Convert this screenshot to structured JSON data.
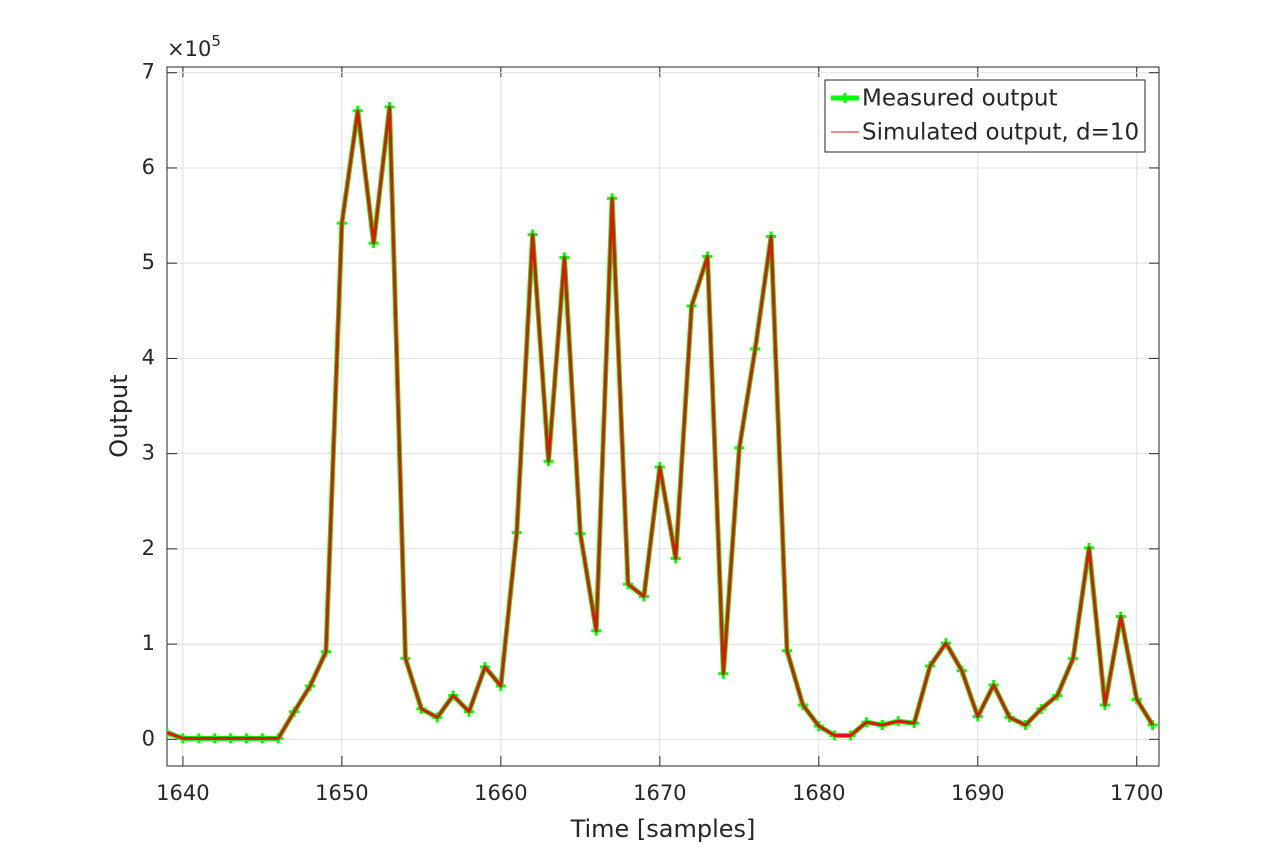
{
  "chart_data": {
    "type": "line",
    "xlabel": "Time [samples]",
    "ylabel": "Output",
    "y_exponent": {
      "base": "×10",
      "power": "5"
    },
    "x": [
      1639,
      1640,
      1641,
      1642,
      1643,
      1644,
      1645,
      1646,
      1647,
      1648,
      1649,
      1650,
      1651,
      1652,
      1653,
      1654,
      1655,
      1656,
      1657,
      1658,
      1659,
      1660,
      1661,
      1662,
      1663,
      1664,
      1665,
      1666,
      1667,
      1668,
      1669,
      1670,
      1671,
      1672,
      1673,
      1674,
      1675,
      1676,
      1677,
      1678,
      1679,
      1680,
      1681,
      1682,
      1683,
      1684,
      1685,
      1686,
      1687,
      1688,
      1689,
      1690,
      1691,
      1692,
      1693,
      1694,
      1695,
      1696,
      1697,
      1698,
      1699,
      1700,
      1701
    ],
    "series": [
      {
        "name": "Measured output",
        "color": "#00ff00",
        "marker": "+",
        "values": [
          7000,
          1000,
          1000,
          1000,
          1000,
          1000,
          1000,
          1000,
          29000,
          56000,
          92000,
          542000,
          660000,
          521000,
          664000,
          85000,
          32000,
          23000,
          46000,
          29000,
          76000,
          56000,
          217000,
          530000,
          292000,
          506000,
          216000,
          114000,
          568000,
          163000,
          150000,
          286000,
          190000,
          455000,
          507000,
          69000,
          306000,
          410000,
          528000,
          93000,
          36000,
          14000,
          4000,
          4000,
          18000,
          15000,
          19000,
          17000,
          77000,
          101000,
          72000,
          24000,
          57000,
          23000,
          15000,
          32000,
          46000,
          85000,
          201000,
          36000,
          129000,
          42000,
          15000
        ]
      },
      {
        "name": "Simulated output, d=10",
        "color": "#e8120c",
        "values": [
          7000,
          1000,
          1000,
          1000,
          1000,
          1000,
          1000,
          1000,
          29000,
          56000,
          92000,
          542000,
          660000,
          521000,
          664000,
          85000,
          32000,
          23000,
          46000,
          29000,
          76000,
          56000,
          217000,
          530000,
          292000,
          506000,
          216000,
          114000,
          568000,
          163000,
          150000,
          286000,
          190000,
          455000,
          507000,
          69000,
          306000,
          410000,
          528000,
          93000,
          36000,
          14000,
          4000,
          4000,
          18000,
          15000,
          19000,
          17000,
          77000,
          101000,
          72000,
          24000,
          57000,
          23000,
          15000,
          32000,
          46000,
          85000,
          201000,
          36000,
          129000,
          42000,
          15000
        ]
      }
    ],
    "xlim": [
      1639,
      1701.4
    ],
    "xticks": [
      1640,
      1650,
      1660,
      1670,
      1680,
      1690,
      1700
    ],
    "ylim": [
      -28000,
      706000
    ],
    "yticks": [
      {
        "value": 0,
        "label": "0"
      },
      {
        "value": 100000,
        "label": "1"
      },
      {
        "value": 200000,
        "label": "2"
      },
      {
        "value": 300000,
        "label": "3"
      },
      {
        "value": 400000,
        "label": "4"
      },
      {
        "value": 500000,
        "label": "5"
      },
      {
        "value": 600000,
        "label": "6"
      },
      {
        "value": 700000,
        "label": "7"
      }
    ],
    "grid": true,
    "legend": "top-right"
  }
}
